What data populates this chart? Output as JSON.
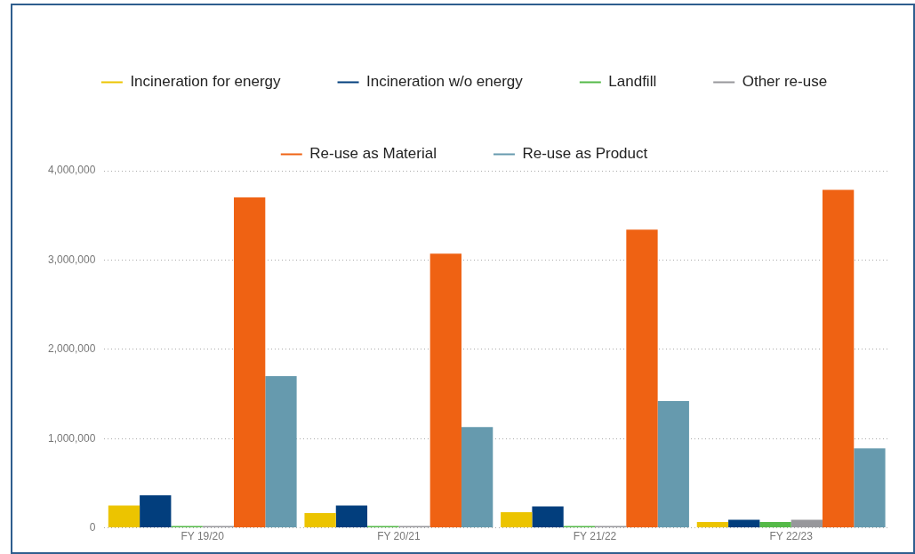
{
  "chart_data": {
    "type": "bar",
    "categories": [
      "FY 19/20",
      "FY 20/21",
      "FY 21/22",
      "FY 22/23"
    ],
    "series": [
      {
        "name": "Incineration for energy",
        "color": "#ecc400",
        "values": [
          250000,
          165000,
          175000,
          65000
        ]
      },
      {
        "name": "Incineration w/o energy",
        "color": "#023e7d",
        "values": [
          365000,
          250000,
          240000,
          90000
        ]
      },
      {
        "name": "Landfill",
        "color": "#54b948",
        "values": [
          20000,
          20000,
          20000,
          65000
        ]
      },
      {
        "name": "Other re-use",
        "color": "#97979b",
        "values": [
          20000,
          20000,
          20000,
          90000
        ]
      },
      {
        "name": "Re-use as Material",
        "color": "#ef6213",
        "values": [
          3700000,
          3070000,
          3340000,
          3785000
        ]
      },
      {
        "name": "Re-use as Product",
        "color": "#669aae",
        "values": [
          1700000,
          1130000,
          1420000,
          890000
        ]
      }
    ],
    "ylim": [
      0,
      4000000
    ],
    "yticks": [
      0,
      {
        "value": 1000000,
        "label": "1,000,000"
      },
      {
        "value": 2000000,
        "label": "2,000,000"
      },
      {
        "value": 3000000,
        "label": "3,000,000"
      },
      {
        "value": 4000000,
        "label": "4,000,000"
      }
    ],
    "grid": "y",
    "legend": "top"
  }
}
